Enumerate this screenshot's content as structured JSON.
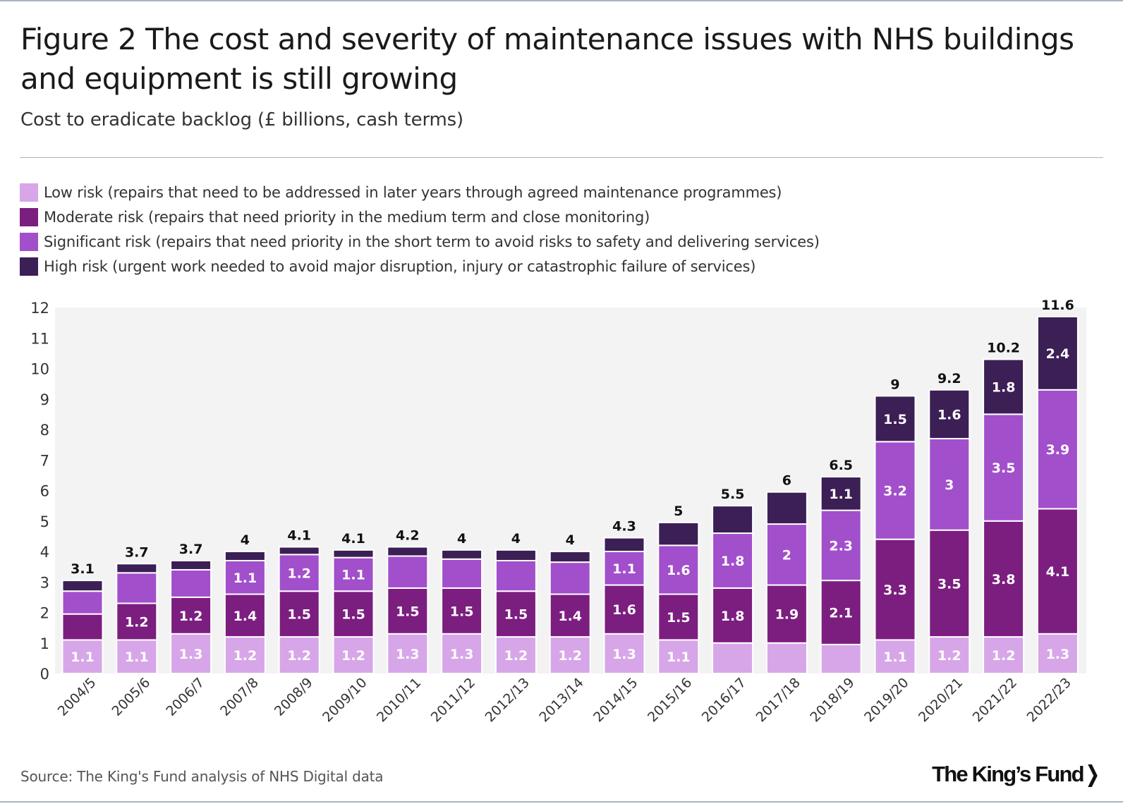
{
  "header": {
    "title": "Figure 2 The cost and severity of maintenance issues with NHS buildings and equipment is still growing",
    "subtitle": "Cost to eradicate backlog (£ billions, cash terms)"
  },
  "footer": {
    "source": "Source: The King's Fund analysis of NHS Digital data",
    "brand": "The King's Fund>"
  },
  "colors": {
    "low": "#d7a6e8",
    "moderate": "#7b1e7f",
    "significant": "#a24fcc",
    "high": "#3b1f55",
    "plot_background": "#f3f3f3"
  },
  "chart_data": {
    "type": "bar",
    "stacked": true,
    "title": "Figure 2 The cost and severity of maintenance issues with NHS buildings and equipment is still growing",
    "subtitle": "Cost to eradicate backlog (£ billions, cash terms)",
    "xlabel": "",
    "ylabel": "",
    "ylim": [
      0,
      12
    ],
    "yticks": [
      0,
      1,
      2,
      3,
      4,
      5,
      6,
      7,
      8,
      9,
      10,
      11,
      12
    ],
    "grid": false,
    "legend_position": "top",
    "categories": [
      "2004/5",
      "2005/6",
      "2006/7",
      "2007/8",
      "2008/9",
      "2009/10",
      "2010/11",
      "2011/12",
      "2012/13",
      "2013/14",
      "2014/15",
      "2015/16",
      "2016/17",
      "2017/18",
      "2018/19",
      "2019/20",
      "2020/21",
      "2021/22",
      "2022/23"
    ],
    "totals": [
      "3.1",
      "3.7",
      "3.7",
      "4",
      "4.1",
      "4.1",
      "4.2",
      "4",
      "4",
      "4",
      "4.3",
      "5",
      "5.5",
      "6",
      "6.5",
      "9",
      "9.2",
      "10.2",
      "11.6"
    ],
    "series": [
      {
        "key": "low",
        "name": "Low risk (repairs that need to be addressed in later years through agreed maintenance programmes)",
        "values": [
          1.1,
          1.1,
          1.3,
          1.2,
          1.2,
          1.2,
          1.3,
          1.3,
          1.2,
          1.2,
          1.3,
          1.1,
          1.0,
          1.0,
          0.95,
          1.1,
          1.2,
          1.2,
          1.3
        ],
        "labels": [
          "1.1",
          "1.1",
          "1.3",
          "1.2",
          "1.2",
          "1.2",
          "1.3",
          "1.3",
          "1.2",
          "1.2",
          "1.3",
          "1.1",
          "",
          "",
          "",
          "1.1",
          "1.2",
          "1.2",
          "1.3"
        ]
      },
      {
        "key": "moderate",
        "name": "Moderate risk (repairs that need priority in the medium term and close monitoring)",
        "values": [
          0.85,
          1.2,
          1.2,
          1.4,
          1.5,
          1.5,
          1.5,
          1.5,
          1.5,
          1.4,
          1.6,
          1.5,
          1.8,
          1.9,
          2.1,
          3.3,
          3.5,
          3.8,
          4.1
        ],
        "labels": [
          "",
          "1.2",
          "1.2",
          "1.4",
          "1.5",
          "1.5",
          "1.5",
          "1.5",
          "1.5",
          "1.4",
          "1.6",
          "1.5",
          "1.8",
          "1.9",
          "2.1",
          "3.3",
          "3.5",
          "3.8",
          "4.1"
        ]
      },
      {
        "key": "significant",
        "name": "Significant risk (repairs that need priority in the short term to avoid risks to safety and delivering services)",
        "values": [
          0.75,
          1.0,
          0.9,
          1.1,
          1.2,
          1.1,
          1.05,
          0.95,
          1.0,
          1.05,
          1.1,
          1.6,
          1.8,
          2.0,
          2.3,
          3.2,
          3.0,
          3.5,
          3.9
        ],
        "labels": [
          "",
          "",
          "",
          "1.1",
          "1.2",
          "1.1",
          "",
          "",
          "",
          "",
          "1.1",
          "1.6",
          "1.8",
          "2",
          "2.3",
          "3.2",
          "3",
          "3.5",
          "3.9"
        ]
      },
      {
        "key": "high",
        "name": "High risk (urgent work needed to avoid major disruption, injury or catastrophic failure of services)",
        "values": [
          0.35,
          0.3,
          0.3,
          0.3,
          0.25,
          0.25,
          0.3,
          0.3,
          0.35,
          0.35,
          0.45,
          0.75,
          0.9,
          1.05,
          1.1,
          1.5,
          1.6,
          1.8,
          2.4
        ],
        "labels": [
          "",
          "",
          "",
          "",
          "",
          "",
          "",
          "",
          "",
          "",
          "",
          "",
          "",
          "",
          "1.1",
          "1.5",
          "1.6",
          "1.8",
          "2.4"
        ]
      }
    ]
  }
}
